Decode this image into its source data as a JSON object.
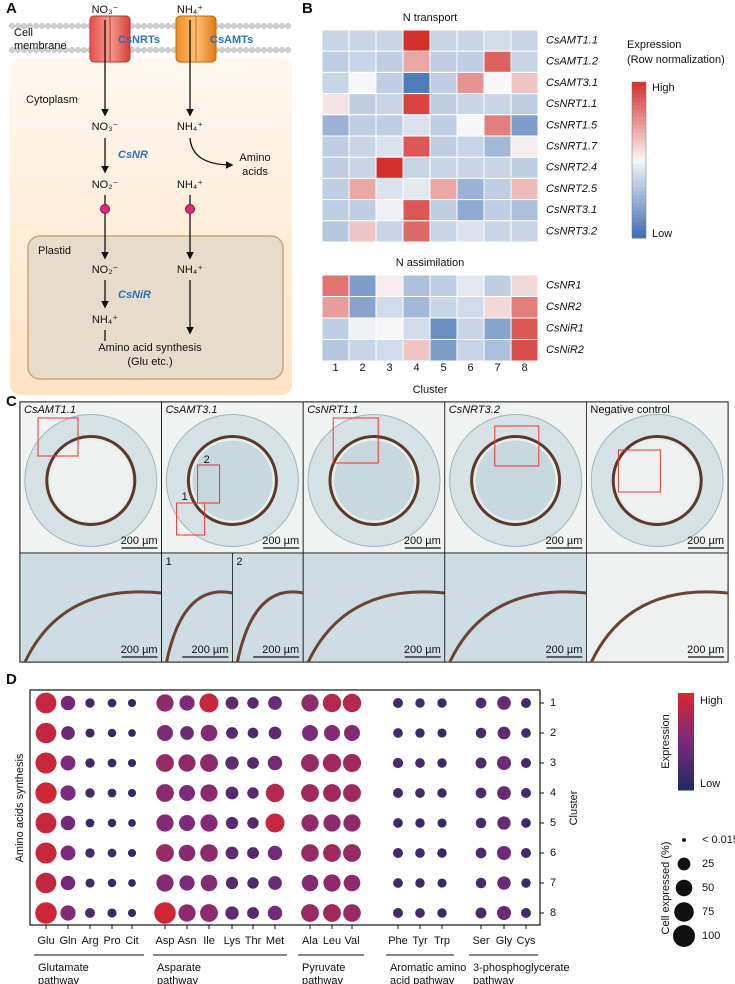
{
  "panel_labels": [
    "A",
    "B",
    "C",
    "D"
  ],
  "panel_a": {
    "ions_top": [
      "NO₃⁻",
      "NH₄⁺"
    ],
    "membrane": [
      "Cell",
      "membrane"
    ],
    "transporters": [
      "CsNRTs",
      "CsAMTs"
    ],
    "cytoplasm": "Cytoplasm",
    "cyto_ions": [
      "NO₃⁻",
      "NH₄⁺"
    ],
    "enzyme_nr": "CsNR",
    "amino_acids": [
      "Amino",
      "acids"
    ],
    "mid_ions": [
      "NO₂⁻",
      "NH₄⁺"
    ],
    "plastid": "Plastid",
    "plastid_ions": [
      "NO₂⁻",
      "NH₄⁺"
    ],
    "enzyme_nir": "CsNiR",
    "plastid_nh4": "NH₄⁺",
    "synthesis": [
      "Amino acid synthesis",
      "(Glu etc.)"
    ]
  },
  "chart_data": [
    {
      "type": "heatmap",
      "title": "N transport",
      "rows": [
        "CsAMT1.1",
        "CsAMT1.2",
        "CsAMT3.1",
        "CsNRT1.1",
        "CsNRT1.5",
        "CsNRT1.7",
        "CsNRT2.4",
        "CsNRT2.5",
        "CsNRT3.1",
        "CsNRT3.2"
      ],
      "values": [
        [
          -0.5,
          -0.5,
          -0.5,
          2,
          -0.5,
          -0.5,
          -0.4,
          -0.5
        ],
        [
          -0.6,
          -0.5,
          -0.6,
          0.8,
          -0.6,
          -0.6,
          1.5,
          -0.5
        ],
        [
          -0.5,
          0,
          -0.6,
          -1.8,
          -0.6,
          1,
          0,
          0.5
        ],
        [
          0.2,
          -0.6,
          -0.5,
          1.8,
          -0.6,
          -0.5,
          -0.5,
          -0.6
        ],
        [
          -1,
          -0.6,
          -0.6,
          -0.3,
          -0.6,
          0,
          1.2,
          -1.3
        ],
        [
          -0.6,
          -0.5,
          -0.3,
          1.6,
          -0.6,
          -0.5,
          -0.9,
          0.1
        ],
        [
          -0.6,
          -0.5,
          2,
          -0.5,
          -0.5,
          -0.5,
          -0.5,
          -0.6
        ],
        [
          -0.6,
          0.8,
          -0.3,
          -0.2,
          0.8,
          -1,
          -0.6,
          0.6
        ],
        [
          -0.6,
          -0.6,
          -0.1,
          1.6,
          -0.6,
          -1.1,
          -0.6,
          -0.8
        ],
        [
          -0.7,
          0.5,
          -0.5,
          1.4,
          -0.5,
          -0.3,
          -0.5,
          -0.5
        ]
      ],
      "clim": [
        -2,
        2
      ],
      "colors": [
        "#3b6db2",
        "#f7f7f7",
        "#d42f2b"
      ],
      "legend_title": [
        "Expression",
        "(Row normalization)"
      ],
      "legend_labels": [
        "High",
        "Low"
      ]
    },
    {
      "type": "heatmap",
      "title": "N assimilation",
      "rows": [
        "CsNR1",
        "CsNR2",
        "CsNiR1",
        "CsNiR2"
      ],
      "values": [
        [
          1.3,
          -1.3,
          0.1,
          -0.8,
          -0.6,
          -0.2,
          -0.6,
          0.3
        ],
        [
          0.9,
          -1.2,
          -0.4,
          -0.9,
          -0.5,
          -0.4,
          0.3,
          1.2
        ],
        [
          -0.6,
          -0.1,
          0,
          -0.4,
          -1.5,
          -0.5,
          -1.2,
          1.6
        ],
        [
          -0.7,
          -0.5,
          -0.4,
          0.5,
          -1.3,
          -0.5,
          -0.8,
          1.7
        ]
      ],
      "categories": [
        "1",
        "2",
        "3",
        "4",
        "5",
        "6",
        "7",
        "8"
      ],
      "x_label": "Cluster",
      "clim": [
        -2,
        2
      ],
      "colors": [
        "#3b6db2",
        "#f7f7f7",
        "#d42f2b"
      ]
    },
    {
      "type": "dot",
      "y_title": "Amino acids synthesis",
      "clusters": [
        "1",
        "2",
        "3",
        "4",
        "5",
        "6",
        "7",
        "8"
      ],
      "cluster_label": "Cluster",
      "clim": [
        0,
        1
      ],
      "colors": [
        "#1f2a5e",
        "#7b2a7c",
        "#d8262e"
      ],
      "groups": [
        {
          "name": [
            "Glutamate",
            "pathway"
          ],
          "categories": [
            "Glu",
            "Gln",
            "Arg",
            "Pro",
            "Cit"
          ],
          "size": [
            [
              88,
              35,
              10,
              8,
              6
            ],
            [
              85,
              30,
              9,
              7,
              5
            ],
            [
              90,
              38,
              10,
              8,
              6
            ],
            [
              92,
              40,
              10,
              8,
              6
            ],
            [
              88,
              35,
              8,
              7,
              5
            ],
            [
              90,
              38,
              10,
              8,
              6
            ],
            [
              86,
              35,
              9,
              7,
              5
            ],
            [
              95,
              40,
              12,
              9,
              6
            ]
          ],
          "expression": [
            [
              0.9,
              0.45,
              0.2,
              0.15,
              0.1
            ],
            [
              0.88,
              0.4,
              0.18,
              0.12,
              0.1
            ],
            [
              0.92,
              0.5,
              0.2,
              0.15,
              0.1
            ],
            [
              0.95,
              0.5,
              0.2,
              0.15,
              0.1
            ],
            [
              0.9,
              0.45,
              0.15,
              0.12,
              0.1
            ],
            [
              0.92,
              0.5,
              0.2,
              0.15,
              0.1
            ],
            [
              0.88,
              0.45,
              0.18,
              0.12,
              0.1
            ],
            [
              0.95,
              0.55,
              0.25,
              0.15,
              0.1
            ]
          ]
        },
        {
          "name": [
            "Asparate",
            "pathway"
          ],
          "categories": [
            "Asp",
            "Asn",
            "Ile",
            "Lys",
            "Thr",
            "Met"
          ],
          "size": [
            [
              55,
              40,
              70,
              25,
              18,
              30
            ],
            [
              45,
              30,
              50,
              20,
              15,
              25
            ],
            [
              60,
              55,
              60,
              28,
              20,
              35
            ],
            [
              60,
              45,
              55,
              25,
              18,
              65
            ],
            [
              55,
              45,
              55,
              22,
              18,
              70
            ],
            [
              60,
              50,
              58,
              25,
              20,
              35
            ],
            [
              55,
              40,
              50,
              22,
              18,
              30
            ],
            [
              95,
              55,
              60,
              28,
              20,
              35
            ]
          ],
          "expression": [
            [
              0.6,
              0.5,
              0.9,
              0.35,
              0.3,
              0.4
            ],
            [
              0.5,
              0.4,
              0.55,
              0.3,
              0.25,
              0.35
            ],
            [
              0.65,
              0.6,
              0.6,
              0.35,
              0.3,
              0.45
            ],
            [
              0.6,
              0.5,
              0.6,
              0.3,
              0.3,
              0.8
            ],
            [
              0.55,
              0.5,
              0.55,
              0.3,
              0.3,
              0.9
            ],
            [
              0.65,
              0.55,
              0.6,
              0.35,
              0.3,
              0.45
            ],
            [
              0.55,
              0.5,
              0.55,
              0.3,
              0.25,
              0.4
            ],
            [
              0.95,
              0.6,
              0.6,
              0.35,
              0.3,
              0.45
            ]
          ]
        },
        {
          "name": [
            "Pyruvate",
            "pathway"
          ],
          "categories": [
            "Ala",
            "Leu",
            "Val"
          ],
          "size": [
            [
              55,
              65,
              65
            ],
            [
              45,
              45,
              45
            ],
            [
              60,
              65,
              62
            ],
            [
              60,
              60,
              60
            ],
            [
              55,
              55,
              55
            ],
            [
              58,
              60,
              60
            ],
            [
              50,
              55,
              50
            ],
            [
              60,
              60,
              58
            ]
          ],
          "expression": [
            [
              0.6,
              0.8,
              0.8
            ],
            [
              0.5,
              0.55,
              0.55
            ],
            [
              0.65,
              0.7,
              0.7
            ],
            [
              0.7,
              0.7,
              0.7
            ],
            [
              0.6,
              0.6,
              0.6
            ],
            [
              0.65,
              0.7,
              0.65
            ],
            [
              0.55,
              0.6,
              0.6
            ],
            [
              0.65,
              0.7,
              0.65
            ]
          ]
        },
        {
          "name": [
            "Aromatic amino",
            "acid pathway"
          ],
          "categories": [
            "Phe",
            "Tyr",
            "Trp"
          ],
          "size": [
            [
              12,
              10,
              10
            ],
            [
              11,
              10,
              9
            ],
            [
              13,
              11,
              10
            ],
            [
              12,
              11,
              10
            ],
            [
              11,
              10,
              9
            ],
            [
              12,
              11,
              10
            ],
            [
              11,
              10,
              9
            ],
            [
              12,
              11,
              10
            ]
          ],
          "expression": [
            [
              0.2,
              0.18,
              0.15
            ],
            [
              0.18,
              0.15,
              0.15
            ],
            [
              0.22,
              0.2,
              0.15
            ],
            [
              0.2,
              0.2,
              0.15
            ],
            [
              0.18,
              0.15,
              0.12
            ],
            [
              0.2,
              0.2,
              0.15
            ],
            [
              0.18,
              0.15,
              0.12
            ],
            [
              0.2,
              0.2,
              0.15
            ]
          ]
        },
        {
          "name": [
            "3-phosphoglycerate",
            "pathway"
          ],
          "categories": [
            "Ser",
            "Gly",
            "Cys"
          ],
          "size": [
            [
              15,
              30,
              12
            ],
            [
              14,
              25,
              11
            ],
            [
              16,
              32,
              12
            ],
            [
              15,
              30,
              12
            ],
            [
              14,
              28,
              11
            ],
            [
              15,
              32,
              12
            ],
            [
              14,
              28,
              10
            ],
            [
              16,
              32,
              12
            ]
          ],
          "expression": [
            [
              0.25,
              0.4,
              0.2
            ],
            [
              0.22,
              0.35,
              0.18
            ],
            [
              0.25,
              0.42,
              0.2
            ],
            [
              0.25,
              0.4,
              0.2
            ],
            [
              0.22,
              0.38,
              0.18
            ],
            [
              0.25,
              0.42,
              0.2
            ],
            [
              0.22,
              0.38,
              0.15
            ],
            [
              0.25,
              0.42,
              0.2
            ]
          ]
        }
      ],
      "expression_legend": {
        "title": "Expression",
        "labels": [
          "High",
          "Low"
        ]
      },
      "size_legend": {
        "title": "Cell expressed (%)",
        "ticks": [
          {
            "value": 0.015,
            "label": "< 0.015"
          },
          25,
          50,
          75,
          100
        ]
      }
    }
  ],
  "panel_c": {
    "images": [
      "CsAMT1.1",
      "CsAMT3.1",
      "CsNRT1.1",
      "CsNRT3.2",
      "Negative control"
    ],
    "insets": [
      "1",
      "2"
    ],
    "scale_bar": "200 µm"
  }
}
